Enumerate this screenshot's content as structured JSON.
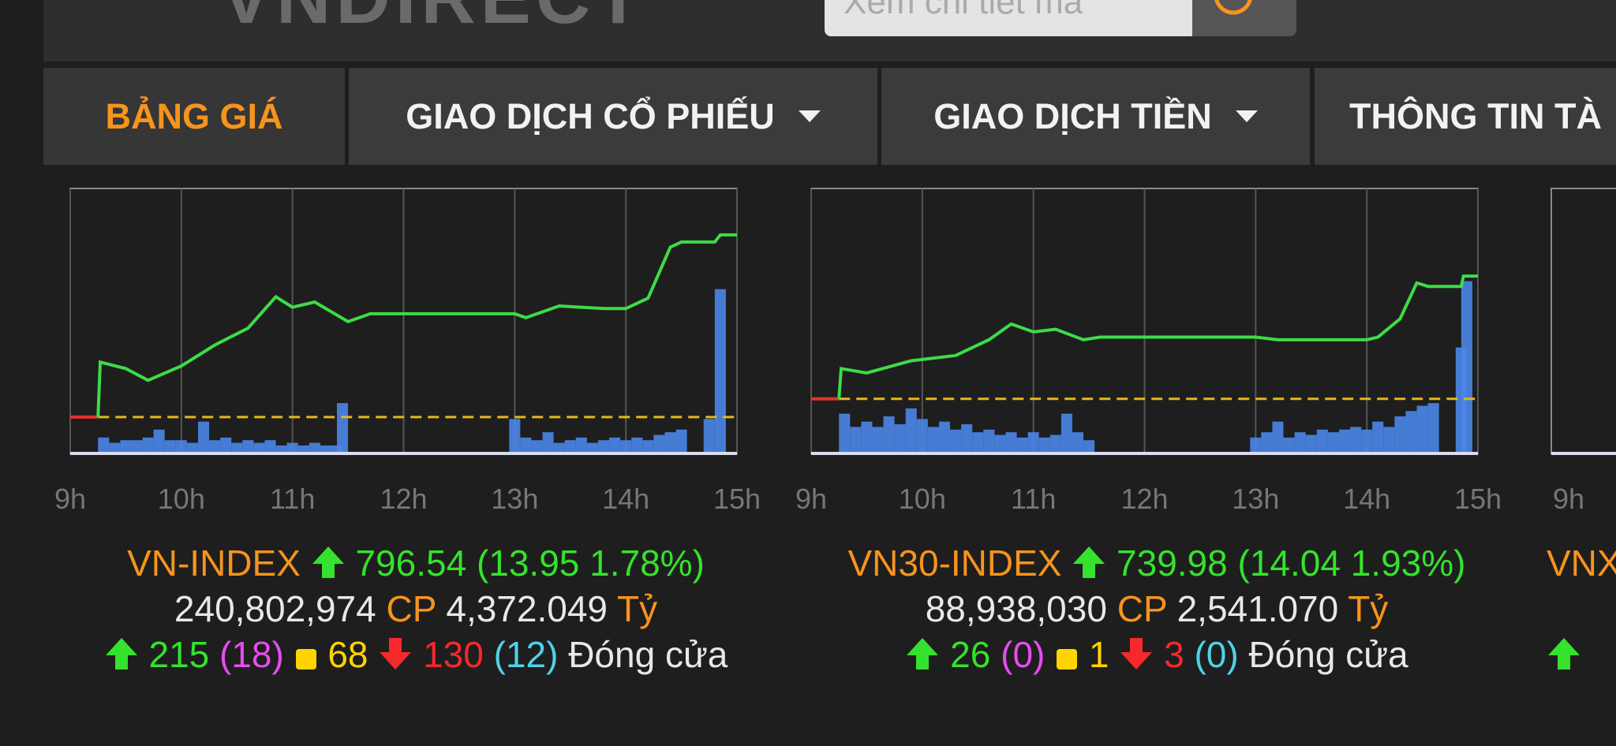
{
  "header": {
    "logo": "VNDIRECT",
    "search_placeholder": "Xem chi tiết mã"
  },
  "nav": {
    "tabs": [
      "BẢNG GIÁ",
      "GIAO DỊCH CỔ PHIẾU",
      "GIAO DỊCH TIỀN",
      "THÔNG TIN TÀ"
    ]
  },
  "chart_data": [
    {
      "type": "line",
      "color": "#3ddc47",
      "x": [
        9.25,
        9.27,
        9.5,
        9.7,
        10.0,
        10.3,
        10.6,
        10.85,
        11.0,
        11.2,
        11.5,
        11.7,
        12.0,
        12.5,
        13.0,
        13.1,
        13.4,
        13.8,
        14.0,
        14.2,
        14.4,
        14.5,
        14.8,
        14.85,
        15.0
      ],
      "values": [
        782.6,
        786.8,
        786.3,
        785.4,
        786.5,
        788.1,
        789.4,
        791.8,
        791.0,
        791.4,
        789.9,
        790.5,
        790.5,
        790.5,
        790.5,
        790.2,
        791.1,
        790.9,
        790.9,
        791.7,
        795.6,
        796.0,
        796.0,
        796.54,
        796.54
      ],
      "xlim": [
        9,
        15
      ],
      "ylim": [
        779.8,
        800.1
      ],
      "reference": 782.59,
      "xticks": [
        {
          "value": 9,
          "label": "9h"
        },
        {
          "value": 10,
          "label": "10h"
        },
        {
          "value": 11,
          "label": "11h"
        },
        {
          "value": 12,
          "label": "12h"
        },
        {
          "value": 13,
          "label": "13h"
        },
        {
          "value": 14,
          "label": "14h"
        },
        {
          "value": 15,
          "label": "15h"
        }
      ],
      "volume": {
        "color": "#4a86e8",
        "ylim": [
          0,
          100
        ],
        "x": [
          9.3,
          9.4,
          9.5,
          9.6,
          9.7,
          9.8,
          9.9,
          10.0,
          10.1,
          10.2,
          10.3,
          10.4,
          10.5,
          10.6,
          10.7,
          10.8,
          10.9,
          11.0,
          11.1,
          11.2,
          11.3,
          11.4,
          11.45,
          13.0,
          13.1,
          13.2,
          13.3,
          13.4,
          13.5,
          13.6,
          13.7,
          13.8,
          13.9,
          14.0,
          14.1,
          14.2,
          14.3,
          14.4,
          14.5,
          14.75,
          14.85
        ],
        "values": [
          6,
          4,
          5,
          5,
          6,
          9,
          5,
          5,
          4,
          12,
          5,
          6,
          4,
          5,
          4,
          5,
          3,
          4,
          3,
          4,
          3,
          3,
          19,
          13,
          6,
          5,
          8,
          4,
          5,
          6,
          4,
          5,
          6,
          5,
          6,
          5,
          7,
          8,
          9,
          13,
          62
        ]
      },
      "summary": {
        "name": "VN-INDEX",
        "close": "796.54",
        "change": "(13.95 1.78%)",
        "volume": "240,802,974",
        "volume_unit": "CP",
        "value": "4,372.049",
        "value_unit": "Tỷ",
        "advances": "215",
        "ceiling": "(18)",
        "unchanged": "68",
        "declines": "130",
        "floor": "(12)",
        "status": "Đóng cửa"
      }
    },
    {
      "type": "line",
      "color": "#3ddc47",
      "x": [
        9.25,
        9.27,
        9.5,
        9.9,
        10.3,
        10.6,
        10.8,
        11.0,
        11.2,
        11.45,
        11.6,
        12.0,
        13.0,
        13.2,
        13.6,
        14.0,
        14.1,
        14.3,
        14.45,
        14.55,
        14.85,
        14.87,
        15.0
      ],
      "values": [
        725.94,
        729.4,
        728.9,
        730.3,
        730.9,
        732.7,
        734.5,
        733.6,
        733.9,
        732.7,
        733.0,
        733.0,
        733.0,
        732.7,
        732.7,
        732.7,
        733.0,
        735.1,
        739.2,
        738.8,
        738.8,
        739.98,
        739.98
      ],
      "xlim": [
        9,
        15
      ],
      "ylim": [
        719.7,
        750.0
      ],
      "reference": 725.94,
      "xticks": [
        {
          "value": 9,
          "label": "9h"
        },
        {
          "value": 10,
          "label": "10h"
        },
        {
          "value": 11,
          "label": "11h"
        },
        {
          "value": 12,
          "label": "12h"
        },
        {
          "value": 13,
          "label": "13h"
        },
        {
          "value": 14,
          "label": "14h"
        },
        {
          "value": 15,
          "label": "15h"
        }
      ],
      "volume": {
        "color": "#4a86e8",
        "ylim": [
          0,
          100
        ],
        "x": [
          9.3,
          9.4,
          9.5,
          9.6,
          9.7,
          9.8,
          9.9,
          10.0,
          10.1,
          10.2,
          10.3,
          10.4,
          10.5,
          10.6,
          10.7,
          10.8,
          10.9,
          11.0,
          11.1,
          11.2,
          11.3,
          11.4,
          11.5,
          13.0,
          13.1,
          13.2,
          13.3,
          13.4,
          13.5,
          13.6,
          13.7,
          13.8,
          13.9,
          14.0,
          14.1,
          14.2,
          14.3,
          14.4,
          14.5,
          14.6,
          14.85,
          14.9
        ],
        "values": [
          15,
          10,
          12,
          10,
          14,
          11,
          17,
          13,
          10,
          12,
          9,
          11,
          8,
          9,
          7,
          8,
          6,
          8,
          6,
          7,
          15,
          8,
          5,
          6,
          8,
          12,
          6,
          8,
          7,
          9,
          8,
          9,
          10,
          9,
          12,
          10,
          14,
          16,
          18,
          19,
          40,
          65
        ]
      },
      "summary": {
        "name": "VN30-INDEX",
        "close": "739.98",
        "change": "(14.04 1.93%)",
        "volume": "88,938,030",
        "volume_unit": "CP",
        "value": "2,541.070",
        "value_unit": "Tỷ",
        "advances": "26",
        "ceiling": "(0)",
        "unchanged": "1",
        "declines": "3",
        "floor": "(0)",
        "status": "Đóng cửa"
      }
    }
  ],
  "partial_panel": {
    "tick": "9h",
    "name": "VNX"
  }
}
